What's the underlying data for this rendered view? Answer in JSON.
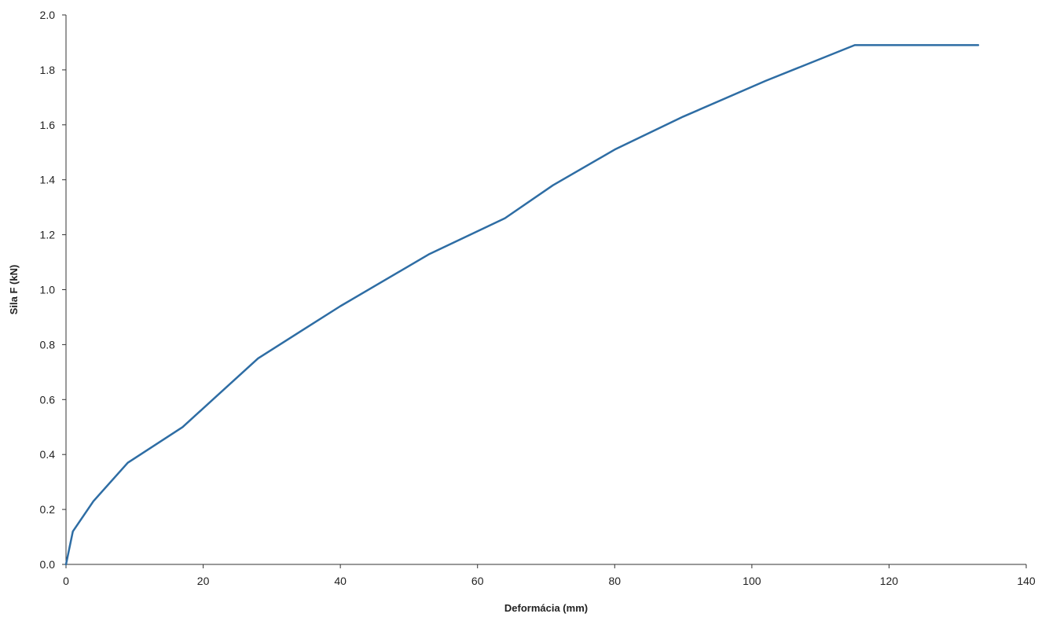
{
  "chart_data": {
    "type": "line",
    "title": "",
    "xlabel": "Deformácia (mm)",
    "ylabel": "Sila F (kN)",
    "xlim": [
      0,
      140
    ],
    "ylim": [
      0,
      2.0
    ],
    "xticks": [
      "0",
      "20",
      "40",
      "60",
      "80",
      "100",
      "120",
      "140"
    ],
    "yticks": [
      "0.0",
      "0.2",
      "0.4",
      "0.6",
      "0.8",
      "1.0",
      "1.2",
      "1.4",
      "1.6",
      "1.8",
      "2.0"
    ],
    "grid": false,
    "legend": "none",
    "series": [
      {
        "color": "#2e6da4",
        "x": [
          0,
          1,
          4,
          9,
          17,
          28,
          40,
          53,
          64,
          71,
          80,
          90,
          102,
          115,
          133
        ],
        "y": [
          0,
          0.12,
          0.23,
          0.37,
          0.5,
          0.75,
          0.94,
          1.13,
          1.26,
          1.38,
          1.51,
          1.63,
          1.76,
          1.89,
          1.89
        ]
      }
    ]
  }
}
